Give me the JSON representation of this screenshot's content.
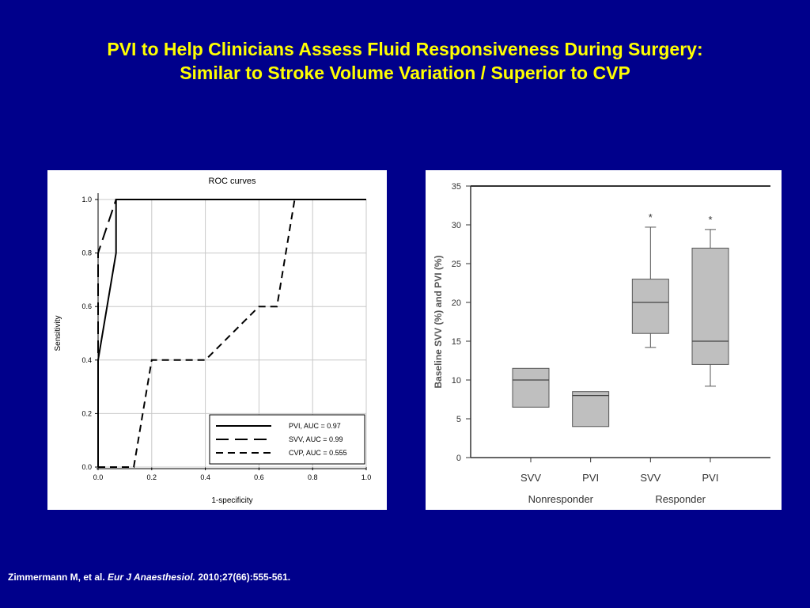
{
  "slide": {
    "title_line1": "PVI to Help Clinicians Assess Fluid Responsiveness During Surgery:",
    "title_line2": "Similar to Stroke Volume Variation / Superior to CVP"
  },
  "citation": {
    "authors": "Zimmermann M, et al.",
    "journal": "Eur J Anaesthesiol.",
    "details": "2010;27(66):555-561."
  },
  "colors": {
    "background": "#00008b",
    "title": "#ffff00",
    "box_fill": "#bfbfbf"
  },
  "chart_data": [
    {
      "type": "line",
      "title": "ROC curves",
      "xlabel": "1-specificity",
      "ylabel": "Sensitivity",
      "xlim": [
        0,
        1
      ],
      "ylim": [
        0,
        1
      ],
      "xticks": [
        "0.0",
        "0.2",
        "0.4",
        "0.6",
        "0.8",
        "1.0"
      ],
      "yticks": [
        "0.0",
        "0.2",
        "0.4",
        "0.6",
        "0.8",
        "1.0"
      ],
      "grid": true,
      "legend_position": "bottom-right",
      "series": [
        {
          "name": "PVI, AUC = 0.97",
          "style": "solid",
          "points": [
            [
              0,
              0
            ],
            [
              0,
              0.4
            ],
            [
              0.067,
              0.8
            ],
            [
              0.067,
              1.0
            ],
            [
              1.0,
              1.0
            ]
          ]
        },
        {
          "name": "SVV, AUC = 0.99",
          "style": "long-dash",
          "points": [
            [
              0,
              0
            ],
            [
              0,
              0.8
            ],
            [
              0.067,
              1.0
            ],
            [
              1.0,
              1.0
            ]
          ]
        },
        {
          "name": "CVP, AUC = 0.555",
          "style": "short-dash",
          "points": [
            [
              0,
              0
            ],
            [
              0.133,
              0
            ],
            [
              0.2,
              0.4
            ],
            [
              0.4,
              0.4
            ],
            [
              0.6,
              0.6
            ],
            [
              0.667,
              0.6
            ],
            [
              0.733,
              1.0
            ]
          ]
        }
      ]
    },
    {
      "type": "box",
      "ylabel": "Baseline SVV (%) and PVI (%)",
      "ylim": [
        0,
        35
      ],
      "yticks": [
        "0",
        "5",
        "10",
        "15",
        "20",
        "25",
        "30",
        "35"
      ],
      "categories": [
        "SVV",
        "PVI",
        "SVV",
        "PVI"
      ],
      "groups": [
        "Nonresponder",
        "Responder"
      ],
      "boxes": [
        {
          "label": "SVV",
          "group": "Nonresponder",
          "q1": 6.5,
          "median": 10,
          "q3": 11.5,
          "whisker_low": null,
          "whisker_high": null,
          "marker": ""
        },
        {
          "label": "PVI",
          "group": "Nonresponder",
          "q1": 4,
          "median": 8,
          "q3": 8.5,
          "whisker_low": null,
          "whisker_high": null,
          "marker": ""
        },
        {
          "label": "SVV",
          "group": "Responder",
          "q1": 16,
          "median": 20,
          "q3": 23,
          "whisker_low": 14.2,
          "whisker_high": 29.7,
          "marker": "*"
        },
        {
          "label": "PVI",
          "group": "Responder",
          "q1": 12,
          "median": 15,
          "q3": 27,
          "whisker_low": 9.2,
          "whisker_high": 29.4,
          "marker": "*"
        }
      ]
    }
  ]
}
